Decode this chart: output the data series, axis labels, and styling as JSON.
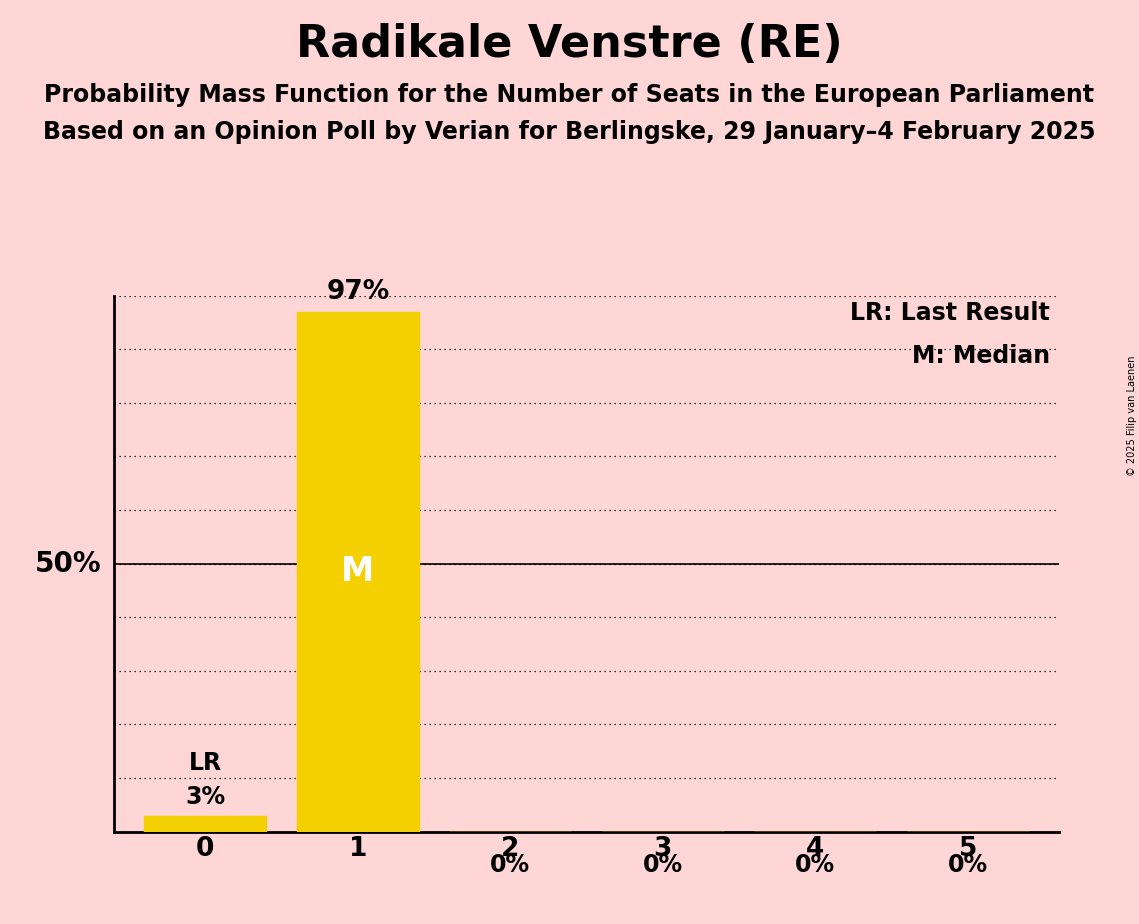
{
  "title": "Radikale Venstre (RE)",
  "subtitle1": "Probability Mass Function for the Number of Seats in the European Parliament",
  "subtitle2": "Based on an Opinion Poll by Verian for Berlingske, 29 January–4 February 2025",
  "copyright": "© 2025 Filip van Laenen",
  "seats": [
    0,
    1,
    2,
    3,
    4,
    5
  ],
  "probabilities": [
    0.03,
    0.97,
    0.0,
    0.0,
    0.0,
    0.0
  ],
  "bar_color": "#F5D000",
  "median_seat": 1,
  "last_result_seat": 0,
  "background_color": "#FFD6D6",
  "bar_labels": [
    "3%",
    "97%",
    "0%",
    "0%",
    "0%",
    "0%"
  ],
  "lr_label": "LR",
  "median_label": "M",
  "legend_lr": "LR: Last Result",
  "legend_m": "M: Median",
  "ylabel_50": "50%",
  "ylim": [
    0,
    1.0
  ],
  "yticks": [
    0.0,
    0.1,
    0.2,
    0.3,
    0.4,
    0.5,
    0.6,
    0.7,
    0.8,
    0.9,
    1.0
  ],
  "title_fontsize": 32,
  "subtitle_fontsize": 17,
  "label_fontsize": 17,
  "tick_fontsize": 19,
  "legend_fontsize": 17,
  "ylabel_fontsize": 20,
  "median_label_fontsize": 24
}
